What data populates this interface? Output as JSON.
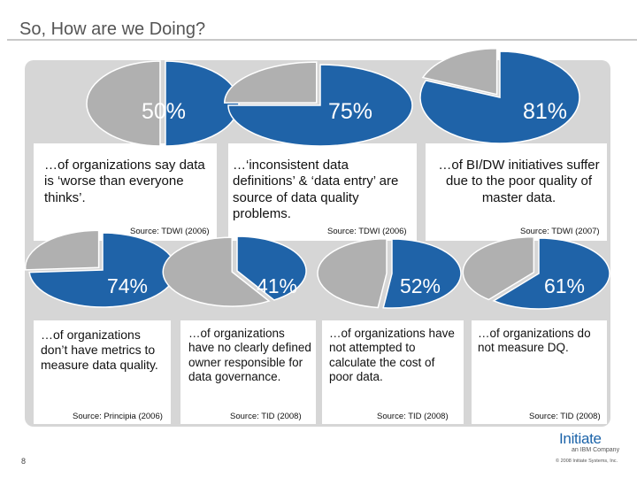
{
  "title": "So, How are we Doing?",
  "colors": {
    "blue": "#1f63a8",
    "gray": "#b0b0b0",
    "panel": "#d6d6d6"
  },
  "stats_top": [
    {
      "percent": "50%",
      "value": 50,
      "description": "…of organizations say data is ‘worse than everyone thinks’.",
      "source": "Source: TDWI (2006)"
    },
    {
      "percent": "75%",
      "value": 75,
      "description": "…‘inconsistent data definitions’ & ‘data entry’ are source of data quality problems.",
      "source": "Source: TDWI (2006)"
    },
    {
      "percent": "81%",
      "value": 81,
      "description": "…of BI/DW initiatives suffer due to the poor quality of master data.",
      "source": "Source: TDWI (2007)"
    }
  ],
  "stats_bottom": [
    {
      "percent": "74%",
      "value": 74,
      "description": "…of organizations don’t have metrics to measure data quality.",
      "source": "Source: Principia (2006)"
    },
    {
      "percent": "41%",
      "value": 41,
      "description": "…of organizations have no clearly defined owner responsible for data governance.",
      "source": "Source: TID (2008)"
    },
    {
      "percent": "52%",
      "value": 52,
      "description": "…of organizations have not attempted to calculate the cost of poor data.",
      "source": "Source: TID (2008)"
    },
    {
      "percent": "61%",
      "value": 61,
      "description": "…of organizations do not measure DQ.",
      "source": "Source: TID (2008)"
    }
  ],
  "footer": {
    "page_number": "8",
    "logo_text": "Initiate",
    "logo_sub": "an IBM Company",
    "copyright": "© 2008 Initiate Systems, Inc."
  }
}
